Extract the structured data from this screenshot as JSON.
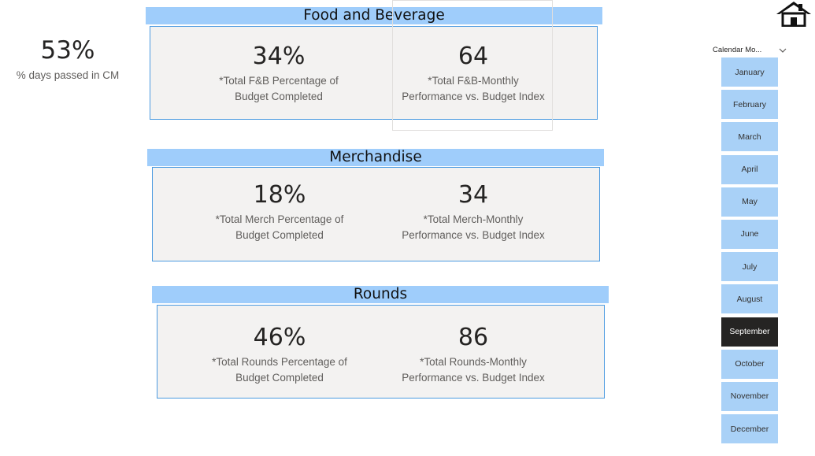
{
  "days_kpi": {
    "value": "53%",
    "label": "% days passed in CM"
  },
  "sections": [
    {
      "title": "Food and Beverage",
      "metrics": [
        {
          "value": "34%",
          "label_line1": "*Total F&B Percentage of",
          "label_line2": "Budget Completed"
        },
        {
          "value": "64",
          "label_line1": "*Total F&B-Monthly",
          "label_line2": "Performance vs. Budget Index"
        }
      ]
    },
    {
      "title": "Merchandise",
      "metrics": [
        {
          "value": "18%",
          "label_line1": "*Total Merch Percentage of",
          "label_line2": "Budget Completed"
        },
        {
          "value": "34",
          "label_line1": "*Total Merch-Monthly",
          "label_line2": "Performance vs. Budget Index"
        }
      ]
    },
    {
      "title": "Rounds",
      "metrics": [
        {
          "value": "46%",
          "label_line1": "*Total Rounds Percentage of",
          "label_line2": "Budget Completed"
        },
        {
          "value": "86",
          "label_line1": "*Total Rounds-Monthly",
          "label_line2": "Performance vs. Budget Index"
        }
      ]
    }
  ],
  "slicer": {
    "title": "Calendar Mo...",
    "months": [
      "January",
      "February",
      "March",
      "April",
      "May",
      "June",
      "July",
      "August",
      "September",
      "October",
      "November",
      "December"
    ],
    "selected": "September"
  },
  "icons": {
    "home": "home-icon",
    "dropdown": "chevron-down-icon"
  },
  "colors": {
    "header_blue": "#9fcdfb",
    "card_bg": "#f3f2f1",
    "card_border": "#4b9ae0",
    "month_bg": "#a9d1f7",
    "month_selected_bg": "#252423"
  }
}
